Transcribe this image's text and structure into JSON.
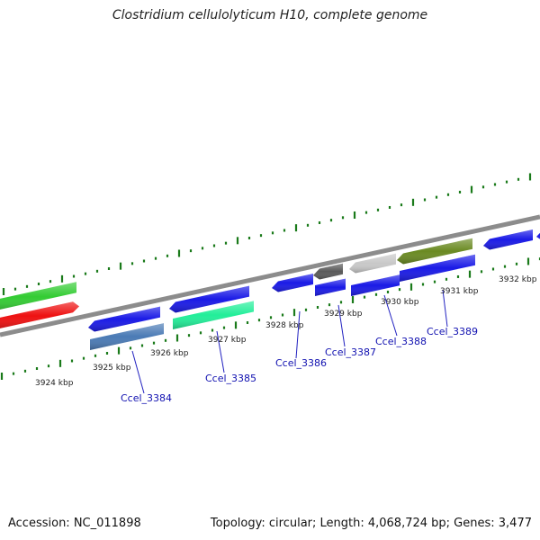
{
  "title": "Clostridium cellulolyticum H10, complete genome",
  "footer": {
    "accession": "Accession: NC_011898",
    "summary": "Topology: circular; Length: 4,068,724 bp; Genes: 3,477"
  },
  "colors": {
    "backbone": "#8c8c8c",
    "ticks": "#1a7a1a",
    "label_line": "#2020c0",
    "label_text": "#1010b0"
  },
  "scale_labels": [
    "3924 kbp",
    "3925 kbp",
    "3926 kbp",
    "3927 kbp",
    "3928 kbp",
    "3929 kbp",
    "3930 kbp",
    "3931 kbp",
    "3932 kbp"
  ],
  "gene_labels": [
    "Ccel_3384",
    "Ccel_3385",
    "Ccel_3386",
    "Ccel_3387",
    "Ccel_3388",
    "Ccel_3389"
  ],
  "features": [
    {
      "name": "feature-green-left",
      "color": "#33cc33"
    },
    {
      "name": "feature-red-left",
      "color": "#ee1111"
    },
    {
      "name": "feature-blue-1",
      "color": "#1a1ae6"
    },
    {
      "name": "feature-steelblue-1",
      "color": "#4a7ab5"
    },
    {
      "name": "feature-blue-2",
      "color": "#1a1ae6"
    },
    {
      "name": "feature-mint-1",
      "color": "#22ee99"
    },
    {
      "name": "feature-blue-3",
      "color": "#1a1ae6"
    },
    {
      "name": "feature-blue-4",
      "color": "#1a1ae6"
    },
    {
      "name": "feature-gray-1",
      "color": "#5a5a5a"
    },
    {
      "name": "feature-blue-5",
      "color": "#1a1ae6"
    },
    {
      "name": "feature-lightgray-1",
      "color": "#c8c8c8"
    },
    {
      "name": "feature-blue-6",
      "color": "#1a1ae6"
    },
    {
      "name": "feature-olive-1",
      "color": "#6a8a22"
    },
    {
      "name": "feature-blue-7",
      "color": "#1a1ae6"
    },
    {
      "name": "feature-blue-8",
      "color": "#1a1ae6"
    }
  ]
}
